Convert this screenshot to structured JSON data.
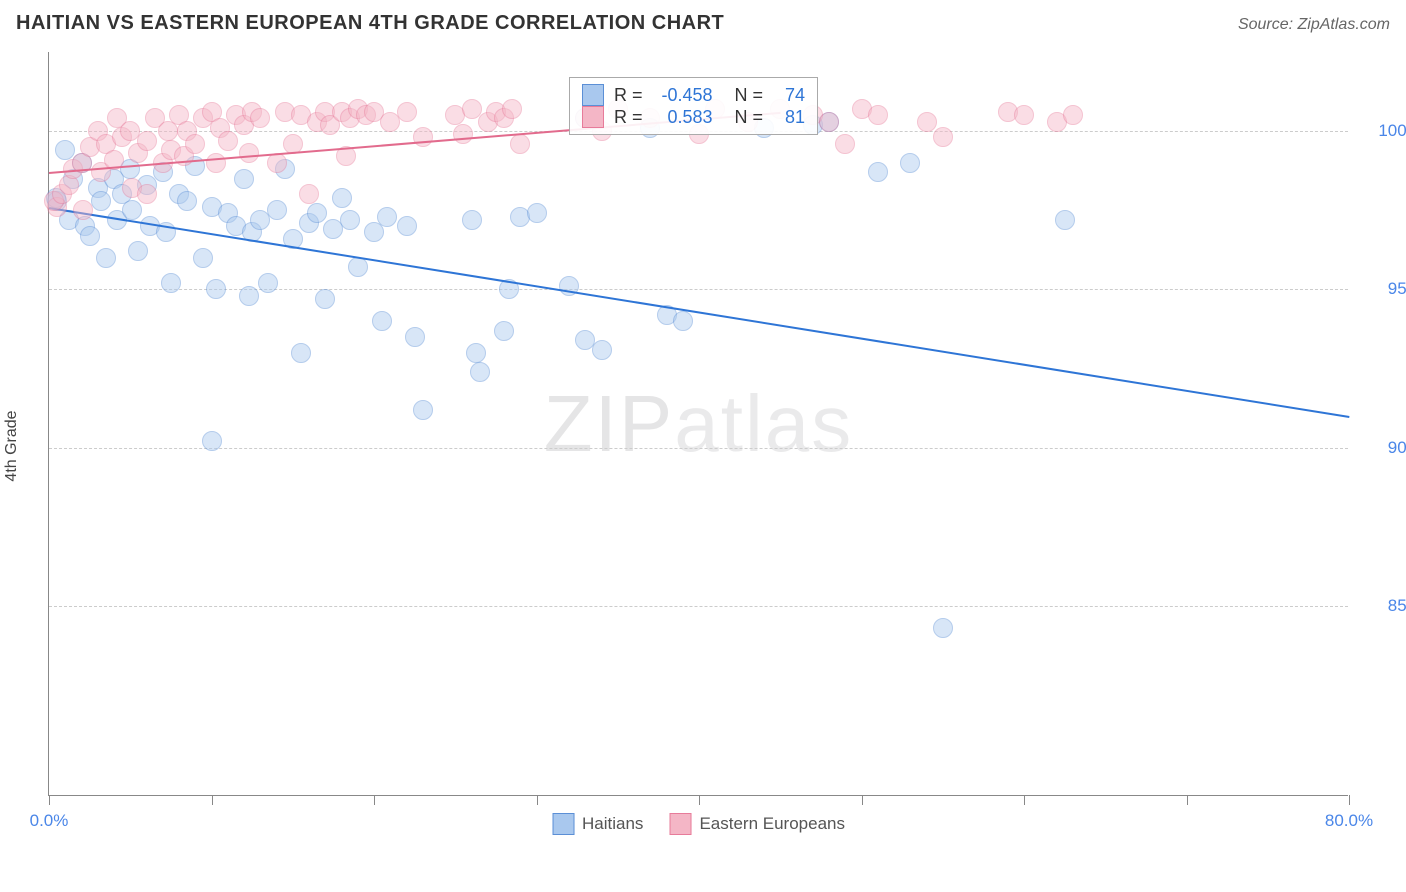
{
  "title": "HAITIAN VS EASTERN EUROPEAN 4TH GRADE CORRELATION CHART",
  "source": "Source: ZipAtlas.com",
  "ylabel": "4th Grade",
  "watermark_a": "ZIP",
  "watermark_b": "atlas",
  "chart": {
    "type": "scatter",
    "xlim": [
      0,
      80
    ],
    "ylim": [
      79,
      102.5
    ],
    "background_color": "#ffffff",
    "grid_color": "#cccccc",
    "grid_dashed": true,
    "axis_color": "#888888",
    "ygrid_values": [
      85,
      90,
      95,
      100
    ],
    "ytick_labels": [
      "85.0%",
      "90.0%",
      "95.0%",
      "100.0%"
    ],
    "ytick_color": "#4a86e8",
    "xtick_values": [
      0,
      10,
      20,
      30,
      40,
      50,
      60,
      70,
      80
    ],
    "xtick_labels": {
      "0": "0.0%",
      "80": "80.0%"
    },
    "xtick_color": "#4a86e8",
    "marker_radius": 10,
    "marker_opacity": 0.45,
    "series": [
      {
        "name": "Haitians",
        "color_fill": "#a9c8ee",
        "color_stroke": "#5b8fd6",
        "trend": {
          "x1": 0,
          "y1": 97.6,
          "x2": 80,
          "y2": 91.0,
          "color": "#2e75d6",
          "width": 2.2,
          "R": -0.458,
          "N": 74
        },
        "points": [
          [
            0.5,
            97.8
          ],
          [
            0.4,
            97.9
          ],
          [
            1.0,
            99.4
          ],
          [
            1.5,
            98.5
          ],
          [
            2,
            99.0
          ],
          [
            1.2,
            97.2
          ],
          [
            2.2,
            97.0
          ],
          [
            2.5,
            96.7
          ],
          [
            3,
            98.2
          ],
          [
            3.2,
            97.8
          ],
          [
            3.5,
            96.0
          ],
          [
            4,
            98.5
          ],
          [
            4.2,
            97.2
          ],
          [
            4.5,
            98.0
          ],
          [
            5,
            98.8
          ],
          [
            5.1,
            97.5
          ],
          [
            5.5,
            96.2
          ],
          [
            6,
            98.3
          ],
          [
            6.2,
            97.0
          ],
          [
            7,
            98.7
          ],
          [
            7.2,
            96.8
          ],
          [
            7.5,
            95.2
          ],
          [
            8,
            98.0
          ],
          [
            8.5,
            97.8
          ],
          [
            9,
            98.9
          ],
          [
            9.5,
            96.0
          ],
          [
            10,
            97.6
          ],
          [
            10.3,
            95.0
          ],
          [
            10,
            90.2
          ],
          [
            11,
            97.4
          ],
          [
            11.5,
            97.0
          ],
          [
            12,
            98.5
          ],
          [
            12.3,
            94.8
          ],
          [
            12.5,
            96.8
          ],
          [
            13,
            97.2
          ],
          [
            13.5,
            95.2
          ],
          [
            14,
            97.5
          ],
          [
            14.5,
            98.8
          ],
          [
            15,
            96.6
          ],
          [
            15.5,
            93.0
          ],
          [
            16,
            97.1
          ],
          [
            16.5,
            97.4
          ],
          [
            17,
            94.7
          ],
          [
            17.5,
            96.9
          ],
          [
            18,
            97.9
          ],
          [
            18.5,
            97.2
          ],
          [
            19,
            95.7
          ],
          [
            20,
            96.8
          ],
          [
            20.5,
            94.0
          ],
          [
            20.8,
            97.3
          ],
          [
            22,
            97.0
          ],
          [
            22.5,
            93.5
          ],
          [
            23,
            91.2
          ],
          [
            26,
            97.2
          ],
          [
            26.3,
            93.0
          ],
          [
            26.5,
            92.4
          ],
          [
            28,
            93.7
          ],
          [
            28.3,
            95.0
          ],
          [
            29,
            97.3
          ],
          [
            30,
            97.4
          ],
          [
            32,
            95.1
          ],
          [
            33,
            93.4
          ],
          [
            34,
            93.1
          ],
          [
            38,
            94.2
          ],
          [
            39,
            94.0
          ],
          [
            44,
            100.1
          ],
          [
            47,
            100.2
          ],
          [
            51,
            98.7
          ],
          [
            53,
            99.0
          ],
          [
            55,
            84.3
          ],
          [
            62.5,
            97.2
          ],
          [
            33,
            100.4
          ],
          [
            37,
            100.1
          ],
          [
            48,
            100.3
          ]
        ]
      },
      {
        "name": "Eastern Europeans",
        "color_fill": "#f4b6c6",
        "color_stroke": "#e77b9a",
        "trend": {
          "x1": 0,
          "y1": 98.7,
          "x2": 45,
          "y2": 100.6,
          "color": "#e26b8d",
          "width": 2.2,
          "R": 0.583,
          "N": 81
        },
        "points": [
          [
            0.5,
            97.6
          ],
          [
            0.3,
            97.8
          ],
          [
            0.8,
            98.0
          ],
          [
            1.2,
            98.3
          ],
          [
            1.5,
            98.8
          ],
          [
            2,
            99.0
          ],
          [
            2.1,
            97.5
          ],
          [
            2.5,
            99.5
          ],
          [
            3,
            100.0
          ],
          [
            3.2,
            98.7
          ],
          [
            3.5,
            99.6
          ],
          [
            4,
            99.1
          ],
          [
            4.2,
            100.4
          ],
          [
            4.5,
            99.8
          ],
          [
            5,
            100.0
          ],
          [
            5.5,
            99.3
          ],
          [
            5.1,
            98.2
          ],
          [
            6,
            99.7
          ],
          [
            6.5,
            100.4
          ],
          [
            6,
            98.0
          ],
          [
            7,
            99.0
          ],
          [
            7.3,
            100.0
          ],
          [
            7.5,
            99.4
          ],
          [
            8,
            100.5
          ],
          [
            8.3,
            99.2
          ],
          [
            8.5,
            100.0
          ],
          [
            9,
            99.6
          ],
          [
            9.5,
            100.4
          ],
          [
            10,
            100.6
          ],
          [
            10.3,
            99.0
          ],
          [
            10.5,
            100.1
          ],
          [
            11,
            99.7
          ],
          [
            11.5,
            100.5
          ],
          [
            12,
            100.2
          ],
          [
            12.5,
            100.6
          ],
          [
            12.3,
            99.3
          ],
          [
            13,
            100.4
          ],
          [
            14,
            99.0
          ],
          [
            14.5,
            100.6
          ],
          [
            15,
            99.6
          ],
          [
            15.5,
            100.5
          ],
          [
            16,
            98.0
          ],
          [
            16.5,
            100.3
          ],
          [
            17,
            100.6
          ],
          [
            17.3,
            100.2
          ],
          [
            18,
            100.6
          ],
          [
            18.3,
            99.2
          ],
          [
            18.5,
            100.4
          ],
          [
            19,
            100.7
          ],
          [
            19.5,
            100.5
          ],
          [
            20,
            100.6
          ],
          [
            21,
            100.3
          ],
          [
            22,
            100.6
          ],
          [
            23,
            99.8
          ],
          [
            25,
            100.5
          ],
          [
            25.5,
            99.9
          ],
          [
            26,
            100.7
          ],
          [
            27,
            100.3
          ],
          [
            27.5,
            100.6
          ],
          [
            28,
            100.4
          ],
          [
            28.5,
            100.7
          ],
          [
            29,
            99.6
          ],
          [
            33,
            100.4
          ],
          [
            34,
            100.0
          ],
          [
            35,
            100.7
          ],
          [
            37,
            100.4
          ],
          [
            40,
            99.9
          ],
          [
            41,
            100.7
          ],
          [
            43,
            100.3
          ],
          [
            45,
            100.7
          ],
          [
            47,
            100.5
          ],
          [
            48,
            100.3
          ],
          [
            49,
            99.6
          ],
          [
            50,
            100.7
          ],
          [
            51,
            100.5
          ],
          [
            54,
            100.3
          ],
          [
            59,
            100.6
          ],
          [
            60,
            100.5
          ],
          [
            62,
            100.3
          ],
          [
            63,
            100.5
          ],
          [
            55,
            99.8
          ]
        ]
      }
    ],
    "stats_box": {
      "left_pct": 40.0,
      "top_y": 101.7,
      "rows": [
        {
          "swatch_fill": "#a9c8ee",
          "swatch_stroke": "#5b8fd6",
          "R": "-0.458",
          "N": "74"
        },
        {
          "swatch_fill": "#f4b6c6",
          "swatch_stroke": "#e77b9a",
          "R": "0.583",
          "N": "81"
        }
      ],
      "label_R": "R =",
      "label_N": "N =",
      "value_color": "#2e75d6",
      "label_color": "#333333"
    },
    "legend": {
      "items": [
        {
          "label": "Haitians",
          "fill": "#a9c8ee",
          "stroke": "#5b8fd6"
        },
        {
          "label": "Eastern Europeans",
          "fill": "#f4b6c6",
          "stroke": "#e77b9a"
        }
      ]
    }
  }
}
